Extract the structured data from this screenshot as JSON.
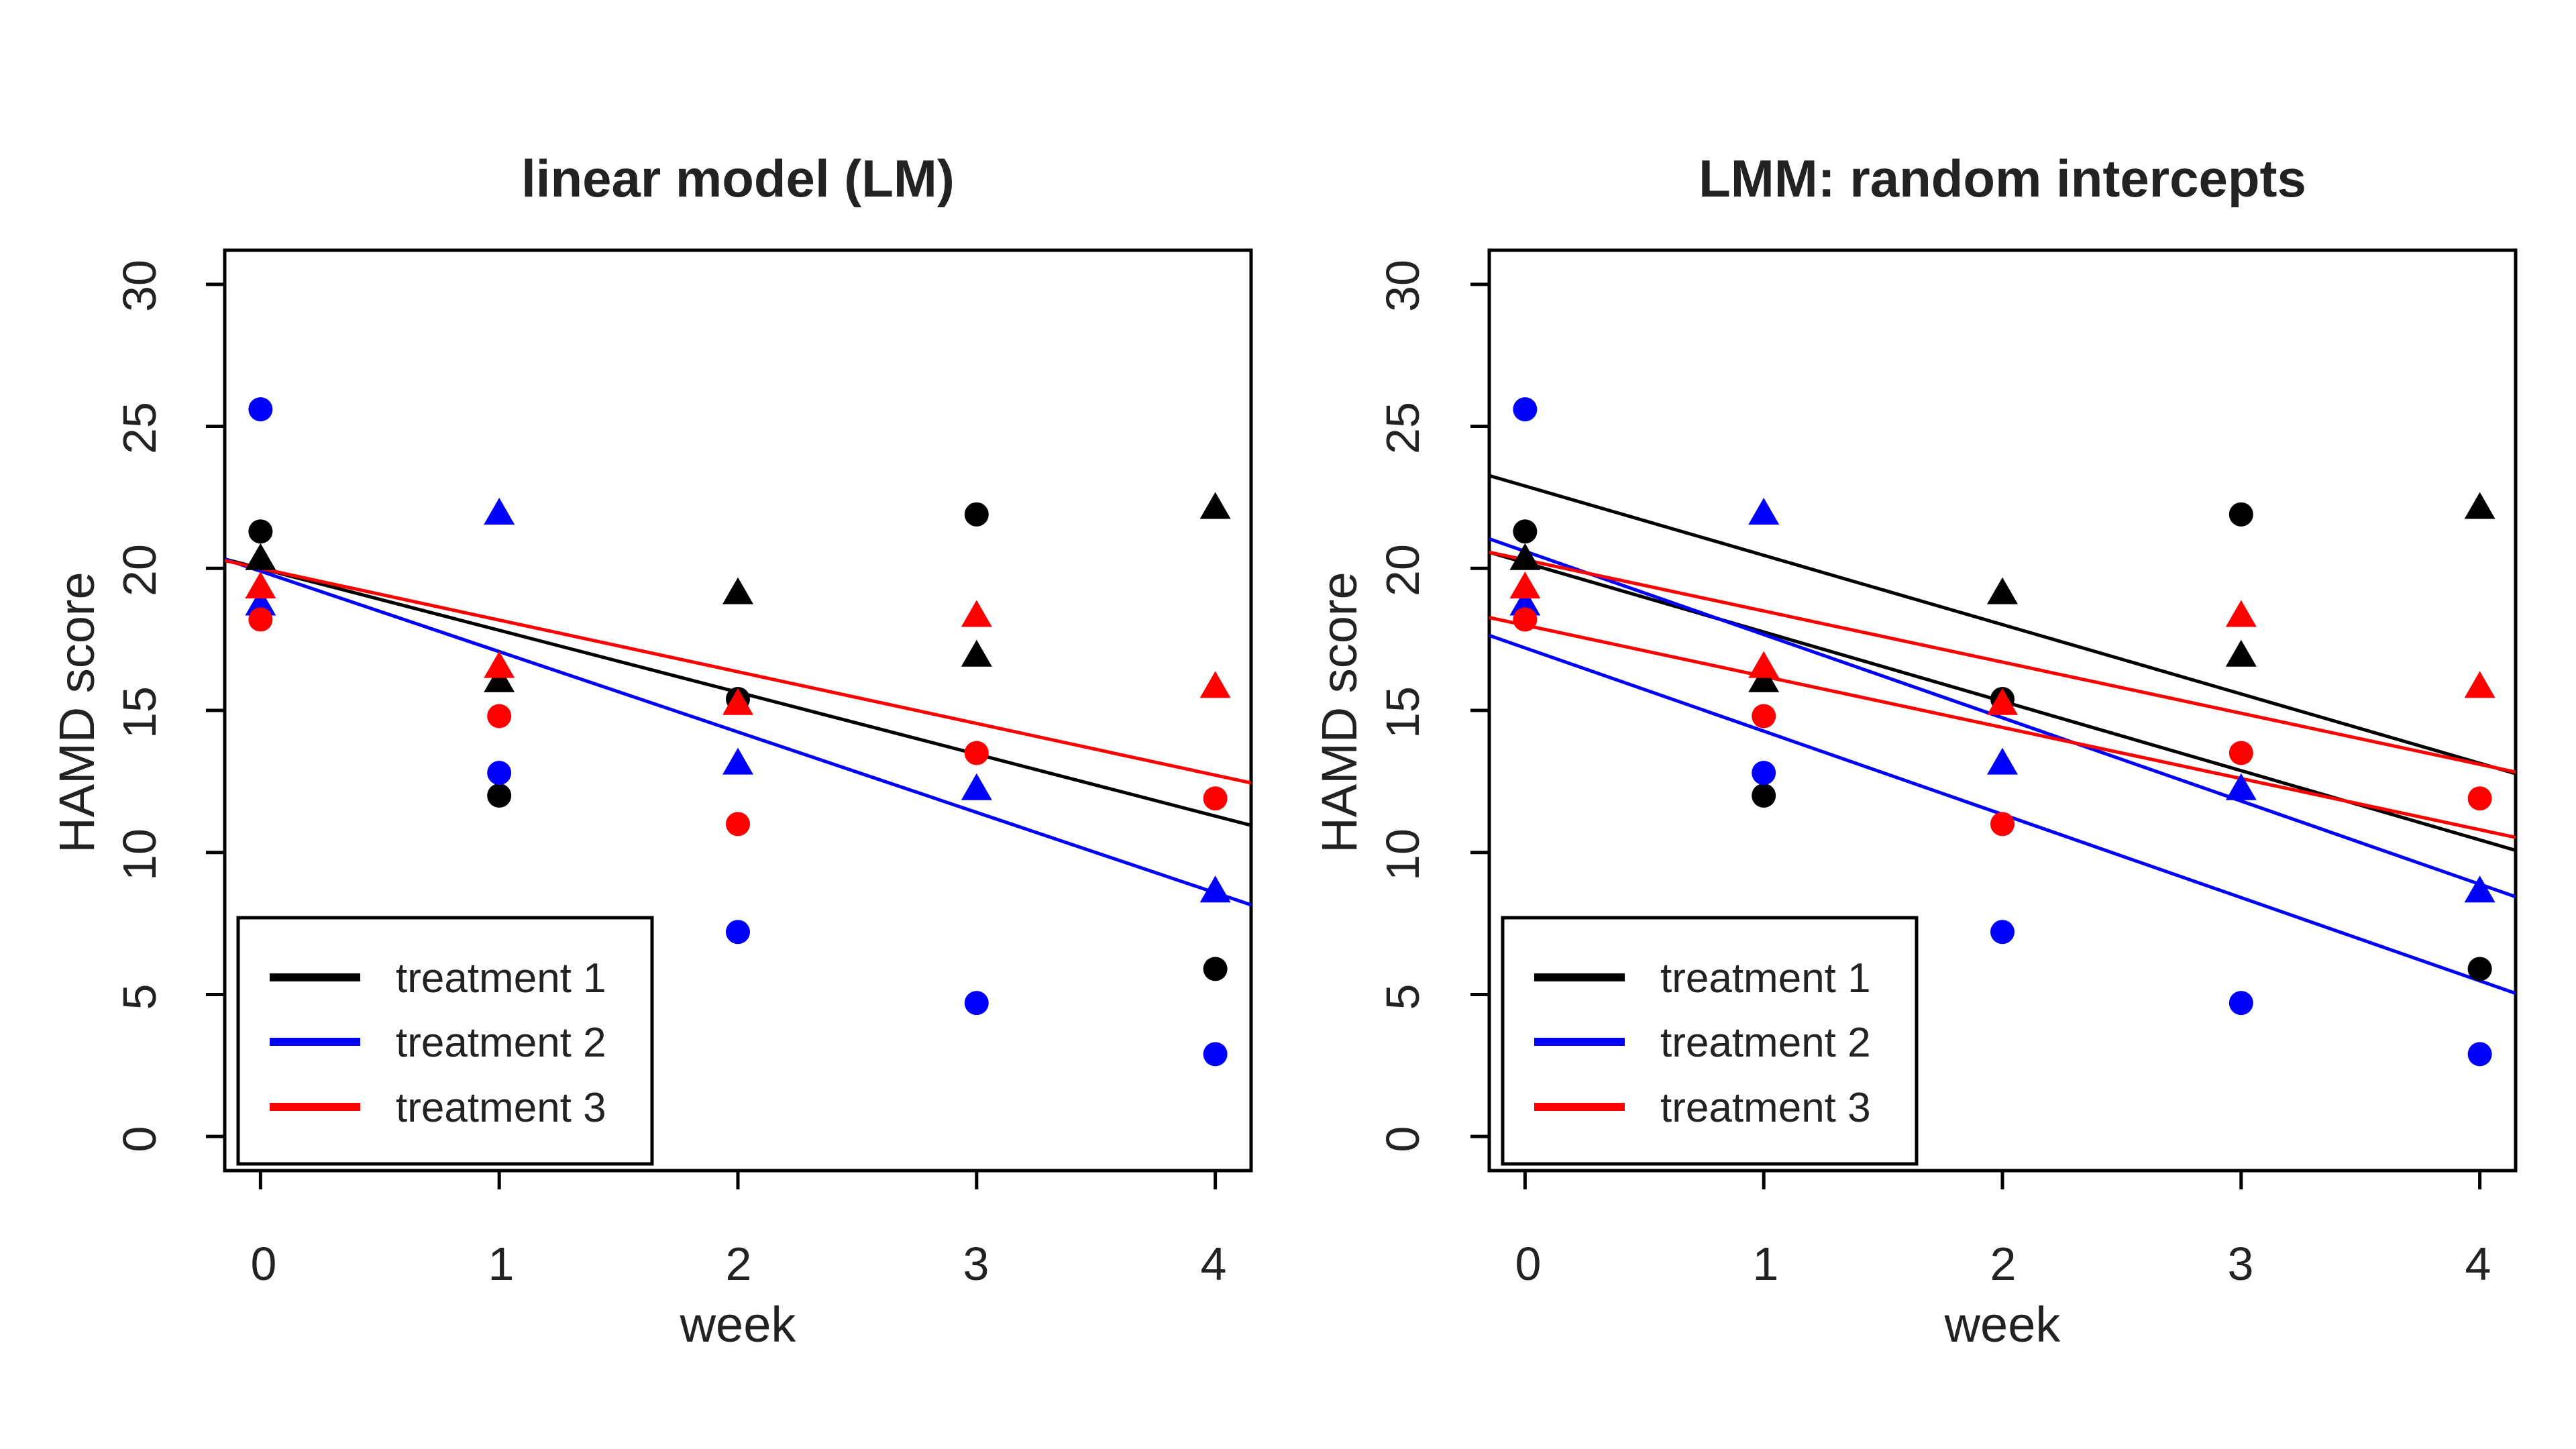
{
  "chart_data": [
    {
      "type": "scatter",
      "title": "linear model (LM)",
      "xlabel": "week",
      "ylabel": "HAMD score",
      "xlim": [
        -0.15,
        4.15
      ],
      "ylim": [
        -1.2,
        31.2
      ],
      "xticks": [
        "0",
        "1",
        "2",
        "3",
        "4"
      ],
      "yticks": [
        "0",
        "5",
        "10",
        "15",
        "20",
        "25",
        "30"
      ],
      "grid": false,
      "legend_position": "bottom-left",
      "legend": [
        "treatment 1",
        "treatment 2",
        "treatment 3"
      ],
      "colors": {
        "treatment 1": "#000000",
        "treatment 2": "#0000ff",
        "treatment 3": "#ff0000"
      },
      "series": [
        {
          "color": "#000000",
          "marker": "circle",
          "x": [
            0,
            1,
            2,
            3,
            4
          ],
          "y": [
            21.3,
            12.0,
            15.4,
            21.9,
            5.9
          ]
        },
        {
          "color": "#000000",
          "marker": "triangle",
          "x": [
            0,
            1,
            2,
            3,
            4
          ],
          "y": [
            20.3,
            16.0,
            19.1,
            16.9,
            22.1
          ]
        },
        {
          "color": "#0000ff",
          "marker": "circle",
          "x": [
            0,
            1,
            2,
            3,
            4
          ],
          "y": [
            25.6,
            12.8,
            7.2,
            4.7,
            2.9
          ]
        },
        {
          "color": "#0000ff",
          "marker": "triangle",
          "x": [
            0,
            1,
            2,
            3,
            4
          ],
          "y": [
            18.7,
            21.9,
            13.1,
            12.2,
            8.6
          ]
        },
        {
          "color": "#ff0000",
          "marker": "circle",
          "x": [
            0,
            1,
            2,
            3,
            4
          ],
          "y": [
            18.2,
            14.8,
            11.0,
            13.5,
            11.9
          ]
        },
        {
          "color": "#ff0000",
          "marker": "triangle",
          "x": [
            0,
            1,
            2,
            3,
            4
          ],
          "y": [
            19.3,
            16.5,
            15.2,
            18.3,
            15.8
          ]
        }
      ],
      "fit_lines": [
        {
          "color": "#000000",
          "intercept": 20.0,
          "slope": -2.18
        },
        {
          "color": "#0000ff",
          "intercept": 19.9,
          "slope": -2.83
        },
        {
          "color": "#ff0000",
          "intercept": 20.0,
          "slope": -1.82
        }
      ]
    },
    {
      "type": "scatter",
      "title": "LMM: random intercepts",
      "xlabel": "week",
      "ylabel": "HAMD score",
      "xlim": [
        -0.15,
        4.15
      ],
      "ylim": [
        -1.2,
        31.2
      ],
      "xticks": [
        "0",
        "1",
        "2",
        "3",
        "4"
      ],
      "yticks": [
        "0",
        "5",
        "10",
        "15",
        "20",
        "25",
        "30"
      ],
      "grid": false,
      "legend_position": "bottom-left",
      "legend": [
        "treatment 1",
        "treatment 2",
        "treatment 3"
      ],
      "colors": {
        "treatment 1": "#000000",
        "treatment 2": "#0000ff",
        "treatment 3": "#ff0000"
      },
      "series": [
        {
          "color": "#000000",
          "marker": "circle",
          "x": [
            0,
            1,
            2,
            3,
            4
          ],
          "y": [
            21.3,
            12.0,
            15.4,
            21.9,
            5.9
          ]
        },
        {
          "color": "#000000",
          "marker": "triangle",
          "x": [
            0,
            1,
            2,
            3,
            4
          ],
          "y": [
            20.3,
            16.0,
            19.1,
            16.9,
            22.1
          ]
        },
        {
          "color": "#0000ff",
          "marker": "circle",
          "x": [
            0,
            1,
            2,
            3,
            4
          ],
          "y": [
            25.6,
            12.8,
            7.2,
            4.7,
            2.9
          ]
        },
        {
          "color": "#0000ff",
          "marker": "triangle",
          "x": [
            0,
            1,
            2,
            3,
            4
          ],
          "y": [
            18.7,
            21.9,
            13.1,
            12.2,
            8.6
          ]
        },
        {
          "color": "#ff0000",
          "marker": "circle",
          "x": [
            0,
            1,
            2,
            3,
            4
          ],
          "y": [
            18.2,
            14.8,
            11.0,
            13.5,
            11.9
          ]
        },
        {
          "color": "#ff0000",
          "marker": "triangle",
          "x": [
            0,
            1,
            2,
            3,
            4
          ],
          "y": [
            19.3,
            16.5,
            15.2,
            18.3,
            15.8
          ]
        }
      ],
      "fit_lines": [
        {
          "color": "#000000",
          "intercept": 22.9,
          "slope": -2.44
        },
        {
          "color": "#000000",
          "intercept": 20.2,
          "slope": -2.44
        },
        {
          "color": "#0000ff",
          "intercept": 20.6,
          "slope": -2.93
        },
        {
          "color": "#0000ff",
          "intercept": 17.2,
          "slope": -2.93
        },
        {
          "color": "#ff0000",
          "intercept": 20.3,
          "slope": -1.8
        },
        {
          "color": "#ff0000",
          "intercept": 18.0,
          "slope": -1.8
        }
      ]
    }
  ]
}
